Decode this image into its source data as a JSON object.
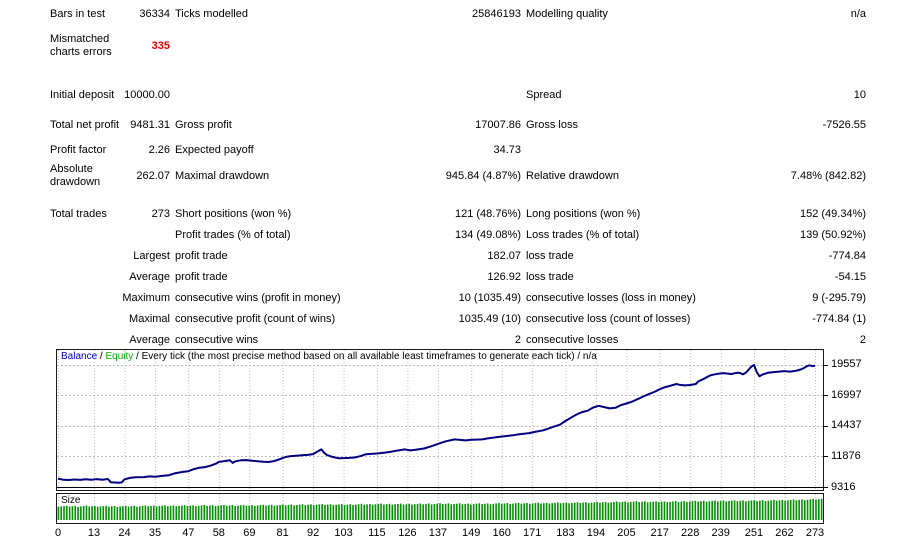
{
  "report": {
    "highlight_color": "#dd0000",
    "rows": [
      {
        "l1": "Bars in test",
        "v1": "36334",
        "l2": "Ticks modelled",
        "v2": "25846193",
        "l3": "Modelling quality",
        "v3": "n/a"
      },
      {
        "l1": "Mismatched charts errors",
        "v1": "335",
        "v1_highlight": true,
        "cls": "tall"
      },
      {
        "spacer": true
      },
      {
        "l1": "Initial deposit",
        "v1": "10000.00",
        "l3": "Spread",
        "v3": "10",
        "cls": "two-line"
      },
      {
        "l1": "Total net profit",
        "v1": "9481.31",
        "l2": "Gross profit",
        "v2": "17007.86",
        "l3": "Gross loss",
        "v3": "-7526.55",
        "cls": "two-line"
      },
      {
        "l1": "Profit factor",
        "v1": "2.26",
        "l2": "Expected payoff",
        "v2": "34.73"
      },
      {
        "l1": "Absolute drawdown",
        "v1": "262.07",
        "l2": "Maximal drawdown",
        "v2": "945.84 (4.87%)",
        "l3": "Relative drawdown",
        "v3": "7.48% (842.82)",
        "cls": "two-line"
      },
      {
        "spacer": true
      },
      {
        "l1": "Total trades",
        "v1": "273",
        "l2": "Short positions (won %)",
        "v2": "121 (48.76%)",
        "l3": "Long positions (won %)",
        "v3": "152 (49.34%)"
      },
      {
        "l2": "Profit trades (% of total)",
        "v2": "134 (49.08%)",
        "l3": "Loss trades (% of total)",
        "v3": "139 (50.92%)"
      },
      {
        "v1": "Largest",
        "l2": "profit trade",
        "v2": "182.07",
        "l3": "loss trade",
        "v3": "-774.84"
      },
      {
        "v1": "Average",
        "l2": "profit trade",
        "v2": "126.92",
        "l3": "loss trade",
        "v3": "-54.15"
      },
      {
        "v1": "Maximum",
        "l2": "consecutive wins (profit in money)",
        "v2": "10 (1035.49)",
        "l3": "consecutive losses (loss in money)",
        "v3": "9 (-295.79)"
      },
      {
        "v1": "Maximal",
        "l2": "consecutive profit (count of wins)",
        "v2": "1035.49 (10)",
        "l3": "consecutive loss (count of losses)",
        "v3": "-774.84 (1)"
      },
      {
        "v1": "Average",
        "l2": "consecutive wins",
        "v2": "2",
        "l3": "consecutive losses",
        "v3": "2"
      }
    ]
  },
  "chart_data": [
    {
      "type": "line",
      "title": "Balance / Equity / Every tick (the most precise method based on all available least timeframes to generate each tick) / n/a",
      "legend": [
        {
          "label": "Balance",
          "color": "#0000C8"
        },
        {
          "label": "Equity",
          "color": "#00B400"
        }
      ],
      "legend_sep": " / ",
      "title_suffix": " / Every tick (the most precise method based on all available least timeframes to generate each tick) / n/a",
      "line_color": "#000080",
      "grid_color": "#bdbdbd",
      "xlabel": "trade number",
      "ylabel": "balance",
      "y_ticks": [
        19557,
        16997,
        14437,
        11876,
        9316
      ],
      "x_ticks": [
        0,
        13,
        24,
        35,
        47,
        58,
        69,
        81,
        92,
        103,
        115,
        126,
        137,
        149,
        160,
        171,
        183,
        194,
        205,
        217,
        228,
        239,
        251,
        262,
        273
      ],
      "xlim": [
        0,
        273
      ],
      "ylim": [
        9316,
        19557
      ],
      "plot_ylim": [
        9065,
        20810
      ],
      "points": [
        [
          0,
          10020
        ],
        [
          2,
          9920
        ],
        [
          4,
          9900
        ],
        [
          6,
          9950
        ],
        [
          8,
          9910
        ],
        [
          10,
          9960
        ],
        [
          12,
          9920
        ],
        [
          14,
          9980
        ],
        [
          16,
          9930
        ],
        [
          18,
          9990
        ],
        [
          19,
          9720
        ],
        [
          22,
          9680
        ],
        [
          23,
          9700
        ],
        [
          24,
          9960
        ],
        [
          26,
          10080
        ],
        [
          28,
          10140
        ],
        [
          31,
          10150
        ],
        [
          33,
          10210
        ],
        [
          35,
          10170
        ],
        [
          38,
          10260
        ],
        [
          40,
          10310
        ],
        [
          42,
          10460
        ],
        [
          45,
          10580
        ],
        [
          47,
          10640
        ],
        [
          49,
          10820
        ],
        [
          51,
          10940
        ],
        [
          53,
          10990
        ],
        [
          55,
          11100
        ],
        [
          57,
          11280
        ],
        [
          58,
          11420
        ],
        [
          60,
          11490
        ],
        [
          62,
          11560
        ],
        [
          63,
          11340
        ],
        [
          64,
          11470
        ],
        [
          66,
          11560
        ],
        [
          68,
          11570
        ],
        [
          70,
          11520
        ],
        [
          72,
          11470
        ],
        [
          74,
          11430
        ],
        [
          76,
          11410
        ],
        [
          78,
          11500
        ],
        [
          80,
          11650
        ],
        [
          82,
          11830
        ],
        [
          84,
          11910
        ],
        [
          86,
          11940
        ],
        [
          88,
          11980
        ],
        [
          90,
          12010
        ],
        [
          92,
          12080
        ],
        [
          94,
          12350
        ],
        [
          95,
          12470
        ],
        [
          96,
          12180
        ],
        [
          97,
          11990
        ],
        [
          99,
          11840
        ],
        [
          101,
          11730
        ],
        [
          103,
          11740
        ],
        [
          105,
          11760
        ],
        [
          107,
          11790
        ],
        [
          109,
          11900
        ],
        [
          111,
          12060
        ],
        [
          113,
          12090
        ],
        [
          115,
          12130
        ],
        [
          118,
          12200
        ],
        [
          120,
          12270
        ],
        [
          122,
          12360
        ],
        [
          125,
          12470
        ],
        [
          127,
          12390
        ],
        [
          129,
          12440
        ],
        [
          132,
          12550
        ],
        [
          134,
          12690
        ],
        [
          136,
          12850
        ],
        [
          138,
          13020
        ],
        [
          140,
          13160
        ],
        [
          142,
          13260
        ],
        [
          143,
          13310
        ],
        [
          145,
          13270
        ],
        [
          147,
          13230
        ],
        [
          149,
          13280
        ],
        [
          151,
          13290
        ],
        [
          153,
          13310
        ],
        [
          155,
          13390
        ],
        [
          157,
          13460
        ],
        [
          159,
          13520
        ],
        [
          161,
          13570
        ],
        [
          164,
          13650
        ],
        [
          166,
          13730
        ],
        [
          168,
          13790
        ],
        [
          170,
          13840
        ],
        [
          172,
          13940
        ],
        [
          175,
          14070
        ],
        [
          177,
          14230
        ],
        [
          179,
          14400
        ],
        [
          181,
          14540
        ],
        [
          183,
          14850
        ],
        [
          185,
          15130
        ],
        [
          187,
          15400
        ],
        [
          189,
          15600
        ],
        [
          191,
          15720
        ],
        [
          193,
          15990
        ],
        [
          195,
          16130
        ],
        [
          197,
          16020
        ],
        [
          199,
          15910
        ],
        [
          201,
          15960
        ],
        [
          203,
          16190
        ],
        [
          205,
          16320
        ],
        [
          207,
          16470
        ],
        [
          209,
          16680
        ],
        [
          211,
          16900
        ],
        [
          213,
          17100
        ],
        [
          215,
          17290
        ],
        [
          217,
          17520
        ],
        [
          219,
          17700
        ],
        [
          221,
          17820
        ],
        [
          223,
          17960
        ],
        [
          224,
          17900
        ],
        [
          226,
          17840
        ],
        [
          228,
          17870
        ],
        [
          230,
          17960
        ],
        [
          231,
          18180
        ],
        [
          233,
          18400
        ],
        [
          234,
          18540
        ],
        [
          235,
          18650
        ],
        [
          236,
          18730
        ],
        [
          238,
          18810
        ],
        [
          240,
          18870
        ],
        [
          242,
          18820
        ],
        [
          243,
          18790
        ],
        [
          244,
          18860
        ],
        [
          245,
          18900
        ],
        [
          246,
          18880
        ],
        [
          247,
          18760
        ],
        [
          248,
          18900
        ],
        [
          249,
          19150
        ],
        [
          250,
          19400
        ],
        [
          251,
          19557
        ],
        [
          252,
          18950
        ],
        [
          253,
          18600
        ],
        [
          254,
          18750
        ],
        [
          256,
          18900
        ],
        [
          258,
          18960
        ],
        [
          260,
          19000
        ],
        [
          262,
          19040
        ],
        [
          264,
          19000
        ],
        [
          266,
          19060
        ],
        [
          268,
          19180
        ],
        [
          269,
          19300
        ],
        [
          270,
          19440
        ],
        [
          271,
          19530
        ],
        [
          272,
          19460
        ],
        [
          273,
          19481
        ]
      ]
    },
    {
      "type": "bar",
      "title": "Size",
      "bar_color": "#009200",
      "count": 273,
      "height_profile": [
        0.62,
        0.63,
        0.62,
        0.64,
        0.65,
        0.66,
        0.66,
        0.68,
        0.7,
        0.7,
        0.72,
        0.72,
        0.74,
        0.73,
        0.75,
        0.76,
        0.78,
        0.8,
        0.83,
        0.83,
        0.85,
        0.87,
        0.88,
        0.9,
        0.95
      ]
    }
  ]
}
